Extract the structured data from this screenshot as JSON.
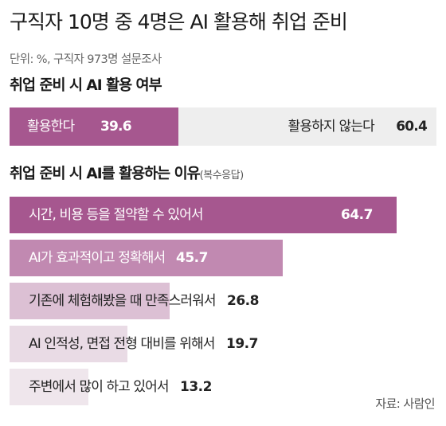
{
  "chart_data": [
    {
      "type": "bar",
      "title": "구직자 10명 중 4명은 AI 활용해 취업 준비",
      "unit_note": "단위: %, 구직자 973명 설문조사",
      "subtitle": "취업 준비 시 AI 활용 여부",
      "categories": [
        "활용한다",
        "활용하지 않는다"
      ],
      "values": [
        39.6,
        60.4
      ],
      "value_labels": [
        "39.6",
        "60.4"
      ],
      "stacked": true,
      "colors": [
        "#a6578f",
        "#eeeeee"
      ]
    },
    {
      "type": "bar",
      "orientation": "horizontal",
      "subtitle": "취업 준비 시 AI를 활용하는 이유",
      "subtitle_note": "(복수응답)",
      "categories": [
        "시간, 비용 등을 절약할 수 있어서",
        "AI가 효과적이고 정확해서",
        "기존에 체험해봤을 때 만족스러워서",
        "AI 인적성, 면접 전형 대비를 위해서",
        "주변에서 많이 하고 있어서"
      ],
      "values": [
        64.7,
        45.7,
        26.8,
        19.7,
        13.2
      ],
      "value_labels": [
        "64.7",
        "45.7",
        "26.8",
        "19.7",
        "13.2"
      ],
      "xlim": [
        0,
        100
      ],
      "colors": [
        "#a6578f",
        "#c189b1",
        "#dcc0d4",
        "#e9dbe5",
        "#efe6ec"
      ],
      "label_colors": [
        "#ffffff",
        "#ffffff",
        "#222222",
        "#222222",
        "#222222"
      ]
    }
  ],
  "source": "자료: 사람인"
}
